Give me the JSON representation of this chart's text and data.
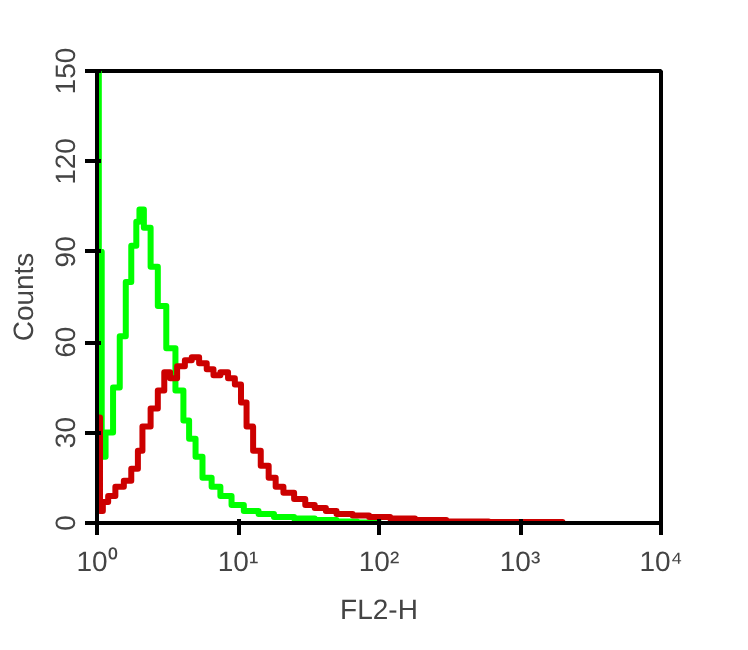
{
  "chart_data": {
    "type": "step",
    "xlabel": "FL2-H",
    "ylabel": "Counts",
    "log": "x",
    "grid": false,
    "marker": "none",
    "line_style": "solid",
    "xlim": [
      1,
      10000
    ],
    "ylim": [
      0,
      150
    ],
    "xticks": [
      {
        "value": 1,
        "label": "10⁰"
      },
      {
        "value": 10,
        "label": "10¹"
      },
      {
        "value": 100,
        "label": "10²"
      },
      {
        "value": 1000,
        "label": "10³"
      },
      {
        "value": 10000,
        "label": "10⁴"
      }
    ],
    "yticks": [
      0,
      30,
      60,
      90,
      120,
      150
    ],
    "series": [
      {
        "color": "#00ff00",
        "x": [
          1,
          1.03,
          1.08,
          1.15,
          1.3,
          1.45,
          1.6,
          1.75,
          1.9,
          2.0,
          2.15,
          2.4,
          2.7,
          3.1,
          3.6,
          4.1,
          4.5,
          5.0,
          5.6,
          6.5,
          7.5,
          9,
          11,
          14,
          18,
          25,
          35,
          50,
          70,
          100
        ],
        "values": [
          150,
          90,
          22,
          30,
          45,
          62,
          80,
          92,
          100,
          104,
          98,
          85,
          72,
          58,
          44,
          34,
          28,
          22,
          15,
          12,
          9,
          6,
          4,
          3,
          2,
          1.5,
          1,
          0.5,
          0.2,
          0
        ]
      },
      {
        "color": "#cc0000",
        "x": [
          1,
          1.05,
          1.1,
          1.2,
          1.35,
          1.55,
          1.75,
          1.95,
          2.1,
          2.4,
          2.7,
          3.0,
          3.3,
          3.7,
          4.2,
          4.7,
          5.3,
          6.0,
          6.7,
          7.5,
          8.5,
          9.5,
          10.5,
          11.5,
          12.8,
          14.5,
          16.5,
          18.5,
          21,
          25,
          30,
          35,
          42,
          50,
          65,
          85,
          120,
          180,
          300,
          600,
          2000
        ],
        "values": [
          35,
          4,
          7,
          9,
          12,
          14,
          18,
          24,
          32,
          38,
          44,
          50,
          48,
          52,
          54,
          55,
          53,
          51,
          49,
          50,
          48,
          46,
          40,
          32,
          24,
          19,
          15,
          12,
          10,
          8,
          6,
          5,
          4,
          3,
          2.5,
          2,
          1.5,
          1,
          0.5,
          0.3,
          0
        ]
      }
    ]
  }
}
